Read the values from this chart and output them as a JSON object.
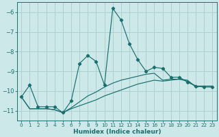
{
  "xlabel": "Humidex (Indice chaleur)",
  "ylabel": "",
  "xlim": [
    -0.5,
    23.5
  ],
  "ylim": [
    -11.5,
    -5.5
  ],
  "yticks": [
    -11,
    -10,
    -9,
    -8,
    -7,
    -6
  ],
  "xticks": [
    0,
    1,
    2,
    3,
    4,
    5,
    6,
    7,
    8,
    9,
    10,
    11,
    12,
    13,
    14,
    15,
    16,
    17,
    18,
    19,
    20,
    21,
    22,
    23
  ],
  "background_color": "#cce8e8",
  "grid_color": "#aacccc",
  "line_color": "#1a6e6e",
  "line1_x": [
    0,
    1,
    2,
    3,
    4,
    5,
    6,
    7,
    8,
    9,
    10,
    11,
    12,
    13,
    14,
    15,
    16,
    17,
    18,
    19,
    20,
    21,
    22,
    23
  ],
  "line1_y": [
    -10.3,
    -9.7,
    -10.8,
    -10.8,
    -10.8,
    -11.1,
    -10.5,
    -8.6,
    -8.2,
    -8.5,
    -9.7,
    -5.8,
    -6.4,
    -7.6,
    -8.4,
    -9.0,
    -8.8,
    -8.85,
    -9.3,
    -9.3,
    -9.55,
    -9.75,
    -9.8,
    -9.8
  ],
  "line2_x": [
    0,
    1,
    2,
    3,
    4,
    5,
    6,
    7,
    8,
    9,
    10,
    11,
    12,
    13,
    14,
    15,
    16,
    17,
    18,
    19,
    20,
    21,
    22,
    23
  ],
  "line2_y": [
    -10.3,
    -10.9,
    -10.9,
    -10.9,
    -10.95,
    -11.1,
    -10.9,
    -10.75,
    -10.6,
    -10.45,
    -10.25,
    -10.1,
    -9.95,
    -9.8,
    -9.65,
    -9.55,
    -9.45,
    -9.5,
    -9.45,
    -9.4,
    -9.45,
    -9.8,
    -9.75,
    -9.75
  ],
  "line3_x": [
    0,
    1,
    2,
    3,
    4,
    5,
    6,
    7,
    8,
    9,
    10,
    11,
    12,
    13,
    14,
    15,
    16,
    17,
    18,
    19,
    20,
    21,
    22,
    23
  ],
  "line3_y": [
    -10.3,
    -10.9,
    -10.9,
    -10.9,
    -10.95,
    -11.1,
    -10.85,
    -10.55,
    -10.25,
    -10.05,
    -9.8,
    -9.6,
    -9.45,
    -9.35,
    -9.25,
    -9.15,
    -9.1,
    -9.45,
    -9.4,
    -9.4,
    -9.5,
    -9.75,
    -9.75,
    -9.75
  ]
}
